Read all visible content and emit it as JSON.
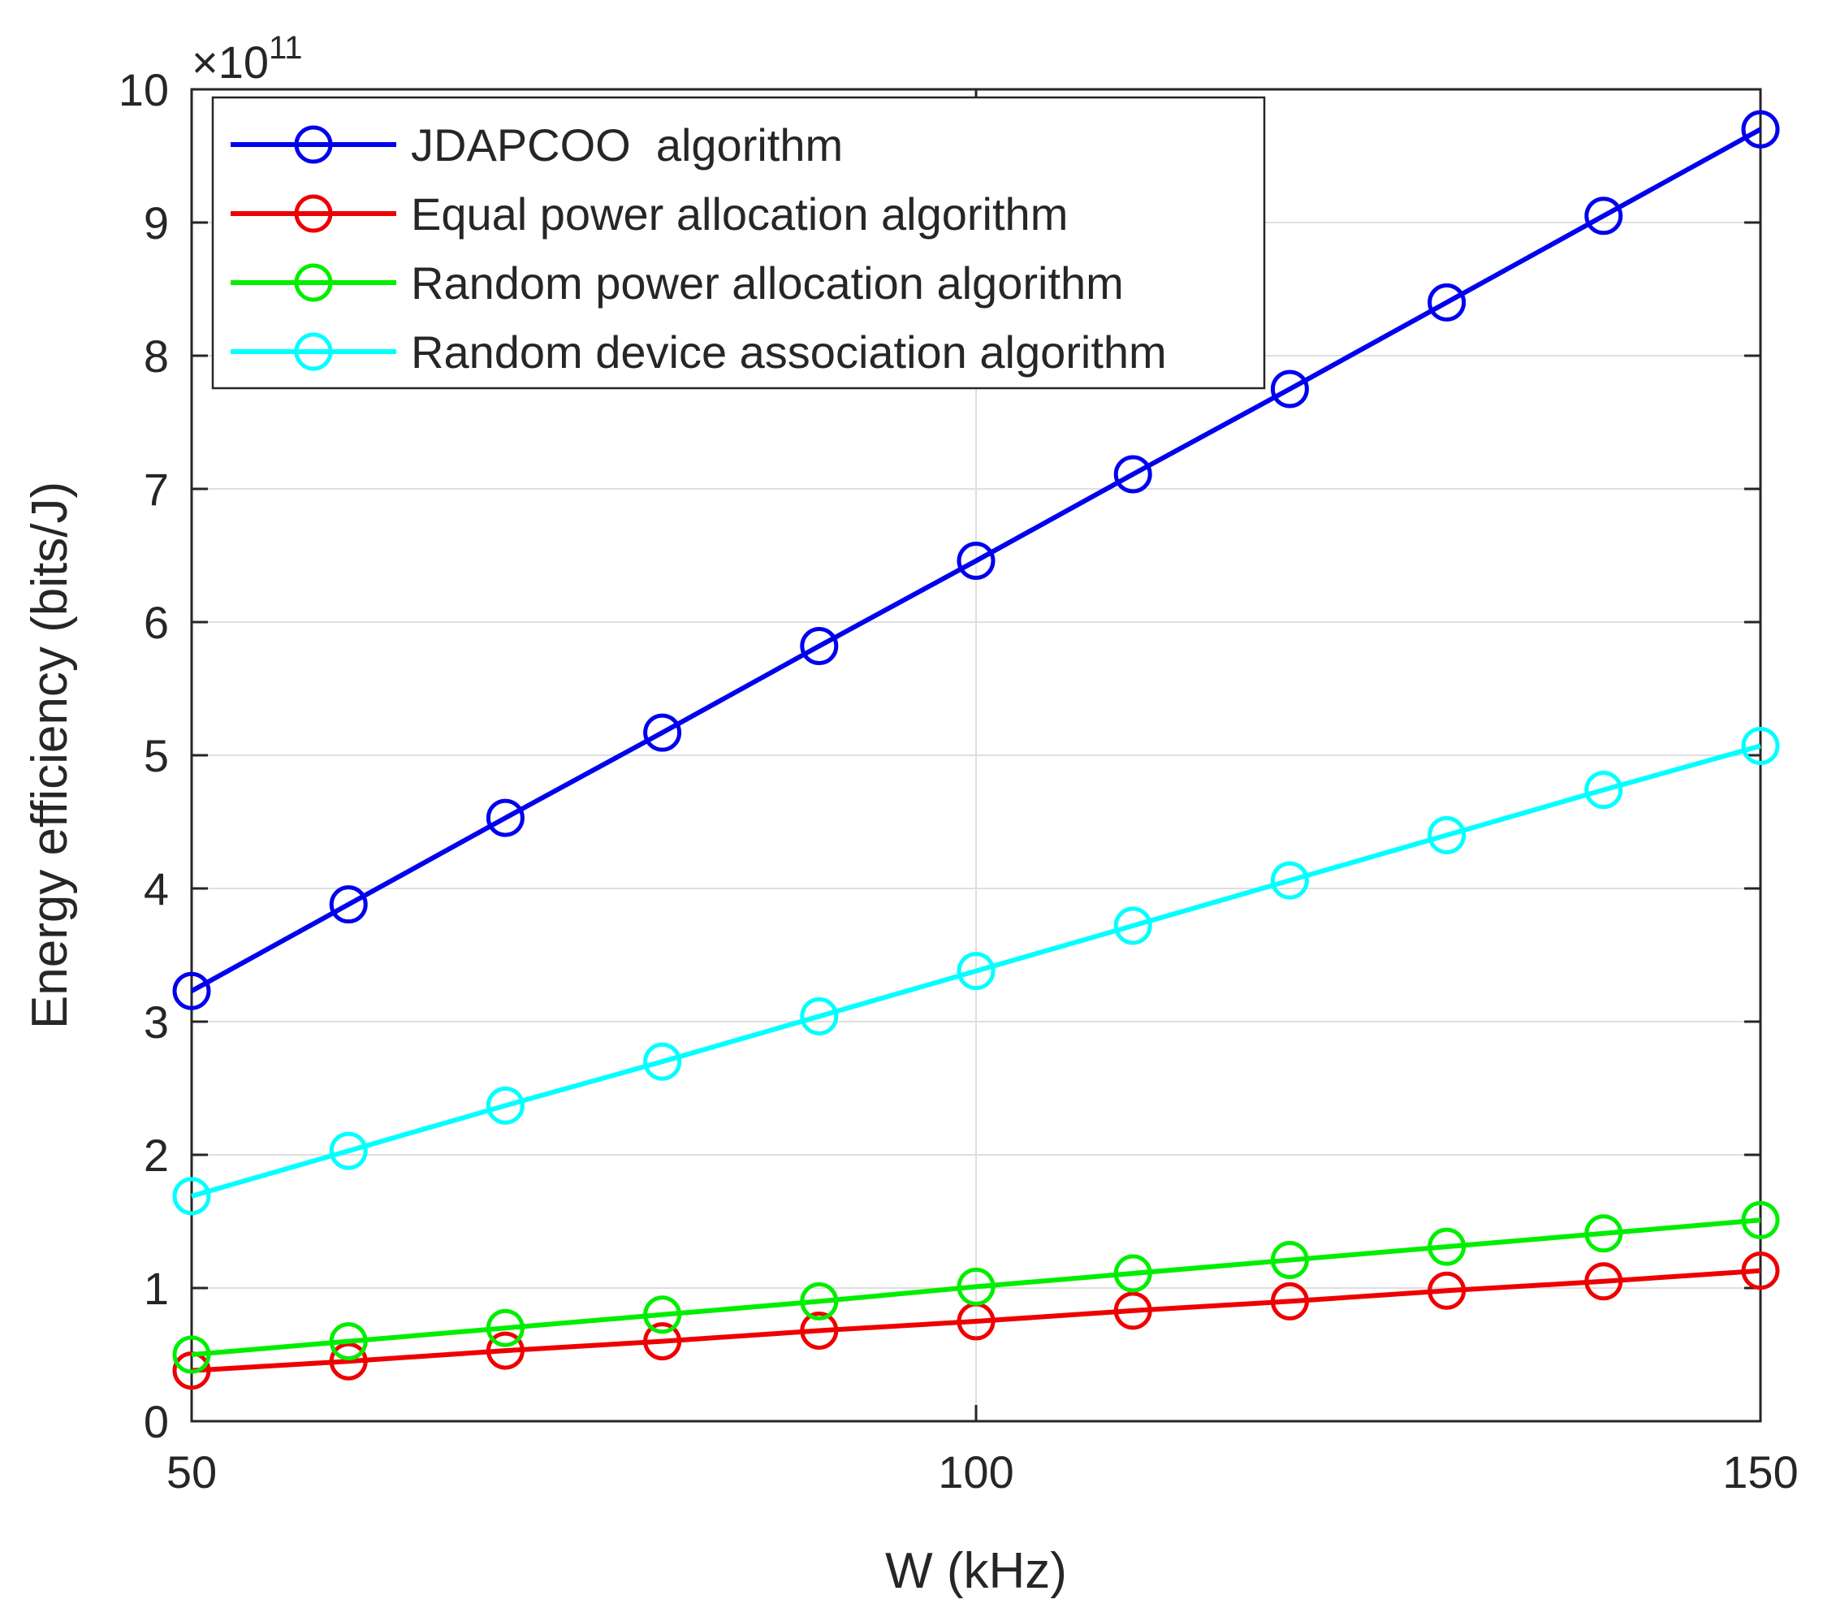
{
  "chart_data": {
    "type": "line",
    "xlabel": "W (kHz)",
    "ylabel": "Energy efficiency (bits/J)",
    "y_multiplier": {
      "base": "×10",
      "exponent": "11"
    },
    "xlim": [
      50,
      150
    ],
    "ylim": [
      0,
      10
    ],
    "x_ticks": [
      "50",
      "100",
      "150"
    ],
    "y_ticks": [
      "0",
      "1",
      "2",
      "3",
      "4",
      "5",
      "6",
      "7",
      "8",
      "9",
      "10"
    ],
    "x_tick_values": [
      50,
      100,
      150
    ],
    "y_tick_values": [
      0,
      1,
      2,
      3,
      4,
      5,
      6,
      7,
      8,
      9,
      10
    ],
    "grid": true,
    "legend_position": "top-left",
    "x": [
      50,
      60,
      70,
      80,
      90,
      100,
      110,
      120,
      130,
      140,
      150
    ],
    "series": [
      {
        "name": "JDAPCOO  algorithm",
        "color": "#0000ee",
        "marker": "circle",
        "values": [
          3.23,
          3.88,
          4.53,
          5.17,
          5.82,
          6.46,
          7.11,
          7.75,
          8.4,
          9.05,
          9.7
        ]
      },
      {
        "name": "Equal power allocation algorithm",
        "color": "#ee0000",
        "marker": "circle",
        "values": [
          0.38,
          0.45,
          0.53,
          0.6,
          0.68,
          0.75,
          0.83,
          0.9,
          0.98,
          1.05,
          1.13
        ]
      },
      {
        "name": "Random power allocation algorithm",
        "color": "#00ee00",
        "marker": "circle",
        "values": [
          0.5,
          0.6,
          0.7,
          0.8,
          0.9,
          1.01,
          1.11,
          1.21,
          1.31,
          1.41,
          1.51
        ]
      },
      {
        "name": "Random device association algorithm",
        "color": "#00ffff",
        "marker": "circle",
        "values": [
          1.69,
          2.03,
          2.37,
          2.7,
          3.04,
          3.38,
          3.72,
          4.06,
          4.4,
          4.74,
          5.07
        ]
      }
    ]
  }
}
